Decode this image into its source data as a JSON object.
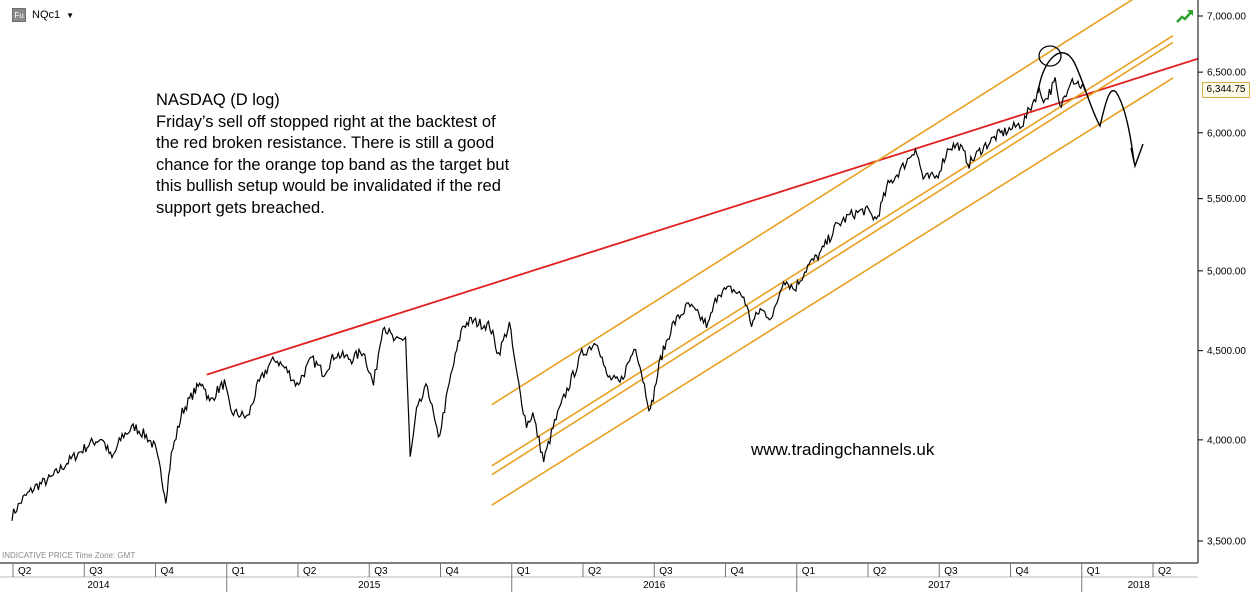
{
  "header": {
    "badge": "Fu",
    "symbol": "NQc1"
  },
  "note_lines": [
    "NASDAQ (D log)",
    "Friday’s sell off stopped right at the backtest of",
    "the red broken resistance. There is still a good",
    "chance for the orange top band as the target but",
    "this bullish setup would be invalidated if the red",
    "support gets breached."
  ],
  "watermark": "www.tradingchannels.uk",
  "footnote": "INDICATIVE PRICE   Time Zone: GMT",
  "last_price": "6,344.75",
  "colors": {
    "price": "#000000",
    "resistance": "#e0201c",
    "channel": "#e8a020",
    "grid": "#000000"
  },
  "chart_data": {
    "type": "line",
    "scale": "log",
    "ylim": [
      3400,
      7050
    ],
    "y_ticks": [
      {
        "value": 3500,
        "label": "3,500.00"
      },
      {
        "value": 4000,
        "label": "4,000.00"
      },
      {
        "value": 4500,
        "label": "4,500.00"
      },
      {
        "value": 5000,
        "label": "5,000.00"
      },
      {
        "value": 5500,
        "label": "5,500.00"
      },
      {
        "value": 6000,
        "label": "6,000.00"
      },
      {
        "value": 6500,
        "label": "6,500.00"
      },
      {
        "value": 7000,
        "label": "7,000.00"
      }
    ],
    "quarter_ticks": [
      {
        "label": "Q2",
        "t": 2014.25
      },
      {
        "label": "Q3",
        "t": 2014.5
      },
      {
        "label": "Q4",
        "t": 2014.75
      },
      {
        "label": "Q1",
        "t": 2015.0
      },
      {
        "label": "Q2",
        "t": 2015.25
      },
      {
        "label": "Q3",
        "t": 2015.5
      },
      {
        "label": "Q4",
        "t": 2015.75
      },
      {
        "label": "Q1",
        "t": 2016.0
      },
      {
        "label": "Q2",
        "t": 2016.25
      },
      {
        "label": "Q3",
        "t": 2016.5
      },
      {
        "label": "Q4",
        "t": 2016.75
      },
      {
        "label": "Q1",
        "t": 2017.0
      },
      {
        "label": "Q2",
        "t": 2017.25
      },
      {
        "label": "Q3",
        "t": 2017.5
      },
      {
        "label": "Q4",
        "t": 2017.75
      },
      {
        "label": "Q1",
        "t": 2018.0
      },
      {
        "label": "Q2",
        "t": 2018.25
      }
    ],
    "year_ticks": [
      {
        "label": "2014",
        "t": 2014.0,
        "mid": 2014.55
      },
      {
        "label": "2015",
        "t": 2015.0,
        "mid": 2015.5
      },
      {
        "label": "2016",
        "t": 2016.0,
        "mid": 2016.5
      },
      {
        "label": "2017",
        "t": 2017.0,
        "mid": 2017.5
      },
      {
        "label": "2018",
        "t": 2018.0,
        "mid": 2018.2
      }
    ],
    "x_range": [
      2014.25,
      2018.3
    ],
    "series": [
      {
        "values": [
          [
            "2014-04-01",
            3620
          ],
          [
            "2014-04-15",
            3700
          ],
          [
            "2014-05-01",
            3760
          ],
          [
            "2014-05-20",
            3800
          ],
          [
            "2014-06-10",
            3880
          ],
          [
            "2014-06-25",
            3930
          ],
          [
            "2014-07-10",
            3980
          ],
          [
            "2014-07-25",
            4010
          ],
          [
            "2014-08-07",
            3900
          ],
          [
            "2014-08-20",
            4020
          ],
          [
            "2014-09-05",
            4070
          ],
          [
            "2014-09-20",
            4020
          ],
          [
            "2014-10-01",
            3960
          ],
          [
            "2014-10-08",
            3840
          ],
          [
            "2014-10-15",
            3700
          ],
          [
            "2014-10-22",
            3920
          ],
          [
            "2014-11-05",
            4150
          ],
          [
            "2014-11-20",
            4260
          ],
          [
            "2014-12-01",
            4320
          ],
          [
            "2014-12-10",
            4200
          ],
          [
            "2014-12-20",
            4270
          ],
          [
            "2014-12-29",
            4310
          ],
          [
            "2015-01-06",
            4150
          ],
          [
            "2015-01-15",
            4140
          ],
          [
            "2015-01-28",
            4120
          ],
          [
            "2015-02-10",
            4300
          ],
          [
            "2015-02-25",
            4420
          ],
          [
            "2015-03-05",
            4450
          ],
          [
            "2015-03-20",
            4380
          ],
          [
            "2015-04-01",
            4300
          ],
          [
            "2015-04-20",
            4450
          ],
          [
            "2015-05-05",
            4370
          ],
          [
            "2015-05-20",
            4480
          ],
          [
            "2015-06-10",
            4450
          ],
          [
            "2015-06-25",
            4500
          ],
          [
            "2015-07-08",
            4300
          ],
          [
            "2015-07-20",
            4660
          ],
          [
            "2015-08-05",
            4550
          ],
          [
            "2015-08-18",
            4580
          ],
          [
            "2015-08-24",
            3900
          ],
          [
            "2015-09-01",
            4150
          ],
          [
            "2015-09-15",
            4300
          ],
          [
            "2015-09-29",
            4000
          ],
          [
            "2015-10-15",
            4350
          ],
          [
            "2015-10-30",
            4650
          ],
          [
            "2015-11-10",
            4680
          ],
          [
            "2015-11-25",
            4660
          ],
          [
            "2015-12-04",
            4650
          ],
          [
            "2015-12-15",
            4480
          ],
          [
            "2015-12-29",
            4660
          ],
          [
            "2016-01-06",
            4400
          ],
          [
            "2016-01-12",
            4250
          ],
          [
            "2016-01-20",
            4080
          ],
          [
            "2016-01-28",
            4140
          ],
          [
            "2016-02-11",
            3890
          ],
          [
            "2016-02-25",
            4090
          ],
          [
            "2016-03-10",
            4250
          ],
          [
            "2016-03-31",
            4480
          ],
          [
            "2016-04-20",
            4560
          ],
          [
            "2016-05-02",
            4350
          ],
          [
            "2016-05-19",
            4310
          ],
          [
            "2016-06-08",
            4530
          ],
          [
            "2016-06-27",
            4150
          ],
          [
            "2016-07-10",
            4450
          ],
          [
            "2016-07-25",
            4650
          ],
          [
            "2016-08-15",
            4780
          ],
          [
            "2016-09-09",
            4650
          ],
          [
            "2016-09-22",
            4860
          ],
          [
            "2016-10-10",
            4880
          ],
          [
            "2016-10-25",
            4830
          ],
          [
            "2016-11-04",
            4660
          ],
          [
            "2016-11-15",
            4750
          ],
          [
            "2016-12-01",
            4700
          ],
          [
            "2016-12-15",
            4950
          ],
          [
            "2016-12-29",
            4880
          ],
          [
            "2017-01-15",
            5030
          ],
          [
            "2017-02-01",
            5120
          ],
          [
            "2017-02-20",
            5300
          ],
          [
            "2017-03-10",
            5380
          ],
          [
            "2017-03-30",
            5420
          ],
          [
            "2017-04-13",
            5350
          ],
          [
            "2017-04-28",
            5600
          ],
          [
            "2017-05-15",
            5720
          ],
          [
            "2017-06-02",
            5880
          ],
          [
            "2017-06-12",
            5650
          ],
          [
            "2017-06-29",
            5660
          ],
          [
            "2017-07-15",
            5890
          ],
          [
            "2017-07-28",
            5900
          ],
          [
            "2017-08-10",
            5760
          ],
          [
            "2017-08-25",
            5870
          ],
          [
            "2017-09-15",
            5980
          ],
          [
            "2017-10-02",
            6030
          ],
          [
            "2017-10-18",
            6080
          ],
          [
            "2017-11-07",
            6350
          ],
          [
            "2017-11-15",
            6260
          ],
          [
            "2017-11-28",
            6420
          ],
          [
            "2017-12-04",
            6190
          ],
          [
            "2017-12-18",
            6450
          ],
          [
            "2017-12-29",
            6400
          ],
          [
            "2018-01-05",
            6344.75
          ]
        ]
      }
    ]
  }
}
